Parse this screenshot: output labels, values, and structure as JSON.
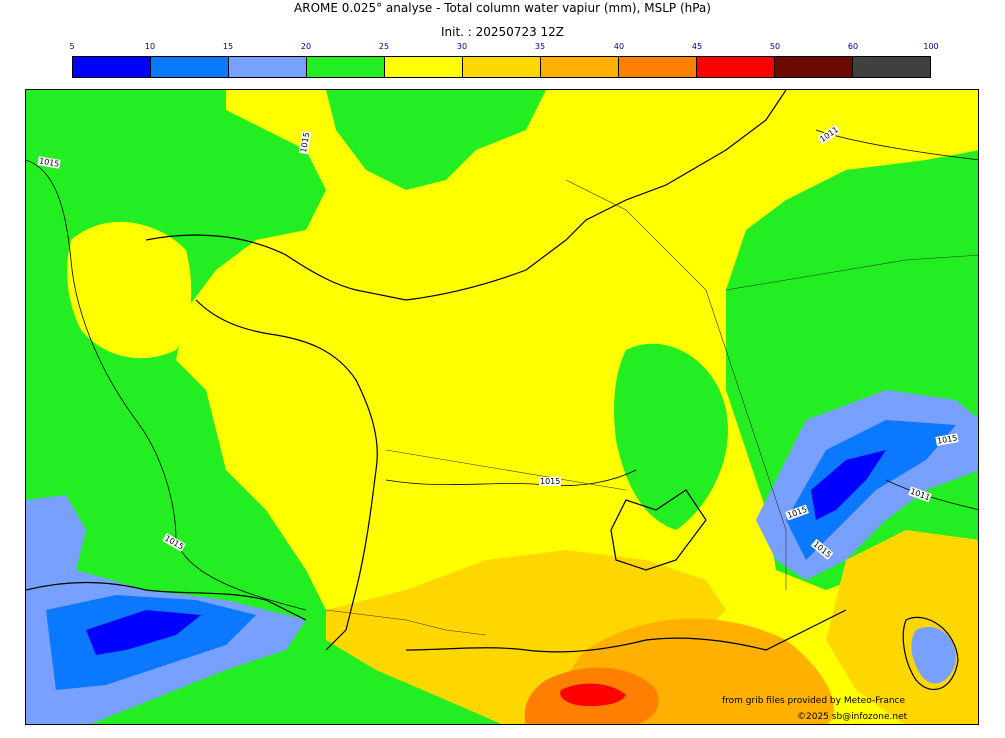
{
  "title": "AROME 0.025° analyse - Total column water vapiur (mm), MSLP (hPa)",
  "subtitle": "Init. : 20250723 12Z",
  "colorbar": {
    "ticks": [
      "5",
      "10",
      "15",
      "20",
      "25",
      "30",
      "35",
      "40",
      "45",
      "50",
      "60",
      "100"
    ],
    "colors": [
      "#0000ff",
      "#0a78ff",
      "#78a0ff",
      "#22ee22",
      "#ffff00",
      "#ffd700",
      "#ffb000",
      "#ff8000",
      "#ff0000",
      "#6b0a00",
      "#404040"
    ]
  },
  "isobar_labels": [
    "1015",
    "1015",
    "1011",
    "1015",
    "1015",
    "1011",
    "1015",
    "1015",
    "1015"
  ],
  "credits": {
    "line1": "from grib files provided by Meteo-France",
    "line2": "©2025 sb@infozone.net"
  }
}
